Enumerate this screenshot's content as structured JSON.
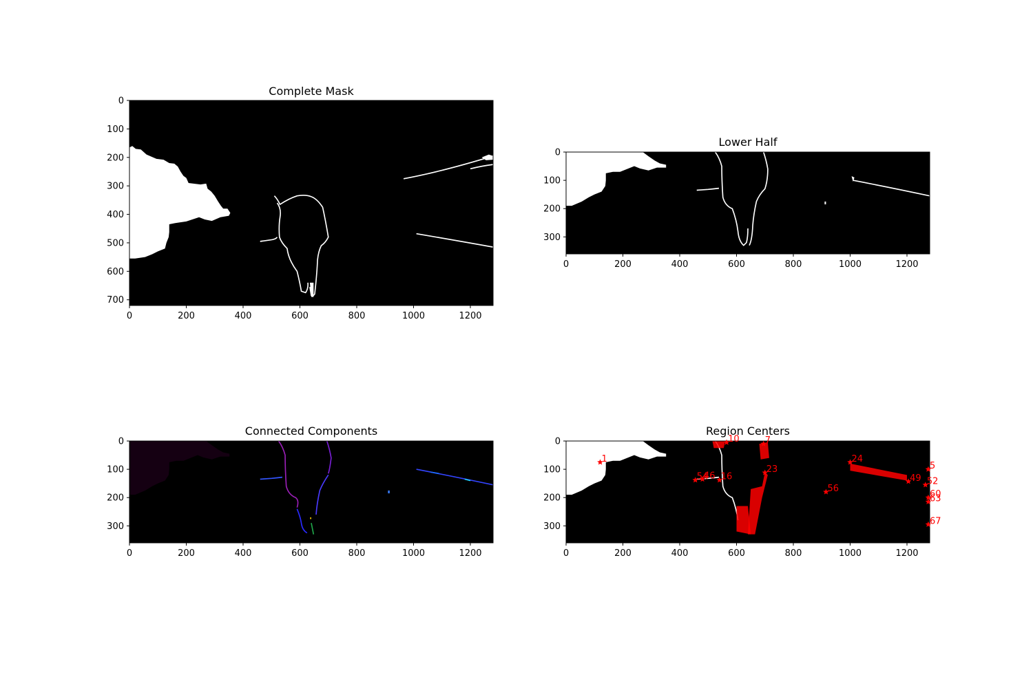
{
  "chart_data": [
    {
      "type": "image",
      "title": "Complete Mask",
      "xlim": [
        0,
        1280
      ],
      "ylim": [
        720,
        0
      ],
      "xticks": [
        "0",
        "200",
        "400",
        "600",
        "800",
        "1000",
        "1200"
      ],
      "yticks": [
        "0",
        "100",
        "200",
        "300",
        "400",
        "500",
        "600",
        "700"
      ],
      "colormap": "gray"
    },
    {
      "type": "image",
      "title": "Lower Half",
      "xlim": [
        0,
        1280
      ],
      "ylim": [
        360,
        0
      ],
      "xticks": [
        "0",
        "200",
        "400",
        "600",
        "800",
        "1000",
        "1200"
      ],
      "yticks": [
        "0",
        "100",
        "200",
        "300"
      ],
      "colormap": "gray"
    },
    {
      "type": "image",
      "title": "Connected Components",
      "xlim": [
        0,
        1280
      ],
      "ylim": [
        360,
        0
      ],
      "xticks": [
        "0",
        "200",
        "400",
        "600",
        "800",
        "1000",
        "1200"
      ],
      "yticks": [
        "0",
        "100",
        "200",
        "300"
      ],
      "colormap": "nipy_spectral"
    },
    {
      "type": "scatter",
      "title": "Region Centers",
      "xlim": [
        0,
        1280
      ],
      "ylim": [
        360,
        0
      ],
      "xticks": [
        "0",
        "200",
        "400",
        "600",
        "800",
        "1000",
        "1200"
      ],
      "yticks": [
        "0",
        "100",
        "200",
        "300"
      ],
      "marker_color": "#ff0000",
      "marker": "star",
      "points": [
        {
          "label": "1",
          "x": 120,
          "y": 75
        },
        {
          "label": "5",
          "x": 1275,
          "y": 100
        },
        {
          "label": "7",
          "x": 695,
          "y": 10
        },
        {
          "label": "10",
          "x": 565,
          "y": 5
        },
        {
          "label": "16",
          "x": 540,
          "y": 138
        },
        {
          "label": "23",
          "x": 700,
          "y": 112
        },
        {
          "label": "24",
          "x": 1000,
          "y": 75
        },
        {
          "label": "46",
          "x": 480,
          "y": 135
        },
        {
          "label": "49",
          "x": 1205,
          "y": 143
        },
        {
          "label": "52",
          "x": 1265,
          "y": 155
        },
        {
          "label": "54",
          "x": 455,
          "y": 138
        },
        {
          "label": "56",
          "x": 915,
          "y": 180
        },
        {
          "label": "60",
          "x": 1275,
          "y": 200
        },
        {
          "label": "63",
          "x": 1275,
          "y": 215
        },
        {
          "label": "67",
          "x": 1275,
          "y": 295
        }
      ]
    }
  ]
}
